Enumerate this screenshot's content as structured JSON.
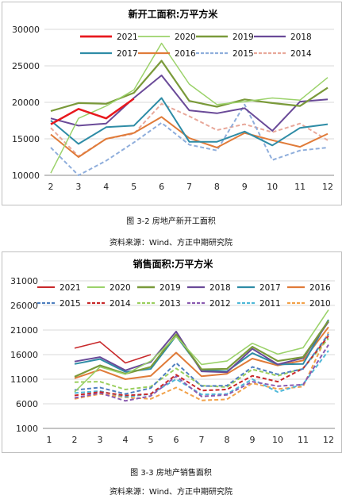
{
  "figures": [
    {
      "caption": "图 3-2 房地产新开工面积",
      "source": "资料来源：Wind、方正中期研究院"
    },
    {
      "caption": "图 3-3 房地产销售面积",
      "source": "资料来源：Wind、方正中期研究院"
    }
  ],
  "chart_data": [
    {
      "type": "line",
      "title": "新开工面积:万平方米",
      "x": [
        2,
        3,
        4,
        5,
        6,
        7,
        8,
        9,
        10,
        11,
        12
      ],
      "ylim": [
        10000,
        30000
      ],
      "yticks": [
        10000,
        15000,
        20000,
        25000,
        30000
      ],
      "grid": true,
      "legend": "top",
      "series": [
        {
          "name": "2021",
          "color": "#e8191e",
          "dash": "solid",
          "width": 2.5,
          "values": [
            17000,
            19100,
            17800,
            20500,
            null,
            null,
            null,
            null,
            null,
            null,
            null
          ]
        },
        {
          "name": "2020",
          "color": "#9bd26a",
          "dash": "solid",
          "width": 1.5,
          "values": [
            10300,
            17800,
            19500,
            21700,
            28100,
            22500,
            19700,
            20100,
            20600,
            20300,
            23400
          ]
        },
        {
          "name": "2019",
          "color": "#7a9a3a",
          "dash": "solid",
          "width": 2.2,
          "values": [
            18800,
            19900,
            19800,
            21300,
            25700,
            20200,
            19400,
            20400,
            19900,
            19500,
            22000
          ]
        },
        {
          "name": "2018",
          "color": "#6a4a98",
          "dash": "solid",
          "width": 2,
          "values": [
            17800,
            16800,
            17100,
            20600,
            23700,
            18900,
            18500,
            19200,
            16100,
            20100,
            20400
          ]
        },
        {
          "name": "2017",
          "color": "#2e8ca6",
          "dash": "solid",
          "width": 2,
          "values": [
            17500,
            14300,
            16600,
            16800,
            20600,
            14600,
            14600,
            16000,
            14100,
            16500,
            17000
          ]
        },
        {
          "name": "2016",
          "color": "#e07b39",
          "dash": "solid",
          "width": 2,
          "values": [
            15600,
            12500,
            15000,
            15800,
            18000,
            15100,
            13800,
            15800,
            14800,
            13900,
            15700
          ]
        },
        {
          "name": "2015",
          "color": "#8faedc",
          "dash": "dashed",
          "width": 2,
          "values": [
            13800,
            10000,
            12000,
            14500,
            17200,
            14200,
            13400,
            19700,
            12100,
            13400,
            13800
          ]
        },
        {
          "name": "2014",
          "color": "#e8a89a",
          "dash": "dashed",
          "width": 2,
          "values": [
            16500,
            12600,
            15000,
            15700,
            19800,
            18100,
            16200,
            17000,
            15900,
            17100,
            14800
          ]
        }
      ]
    },
    {
      "type": "line",
      "title": "销售面积:万平方米",
      "x": [
        1,
        2,
        3,
        4,
        5,
        6,
        7,
        8,
        9,
        10,
        11,
        12
      ],
      "ylim": [
        1000,
        31000
      ],
      "yticks": [
        1000,
        6000,
        11000,
        16000,
        21000,
        26000,
        31000
      ],
      "grid": true,
      "legend": "top",
      "series": [
        {
          "name": "2021",
          "color": "#c8282a",
          "dash": "solid",
          "width": 1.6,
          "values": [
            null,
            17300,
            18600,
            14300,
            16000,
            null,
            null,
            null,
            null,
            null,
            null,
            null
          ]
        },
        {
          "name": "2020",
          "color": "#9bd26a",
          "dash": "solid",
          "width": 1.6,
          "values": [
            null,
            8400,
            13500,
            12000,
            14700,
            19700,
            14000,
            14700,
            18300,
            16100,
            17400,
            25100
          ]
        },
        {
          "name": "2019",
          "color": "#7a9a3a",
          "dash": "solid",
          "width": 2.2,
          "values": [
            null,
            11500,
            13800,
            12100,
            13500,
            20100,
            13000,
            13100,
            17600,
            14700,
            15500,
            22900
          ]
        },
        {
          "name": "2018",
          "color": "#6a4a98",
          "dash": "solid",
          "width": 2,
          "values": [
            null,
            14600,
            15500,
            12800,
            14500,
            20700,
            12600,
            12400,
            17200,
            14000,
            15300,
            22700
          ]
        },
        {
          "name": "2017",
          "color": "#2e8ca6",
          "dash": "solid",
          "width": 2,
          "values": [
            null,
            14100,
            15100,
            12500,
            13100,
            19800,
            12900,
            12600,
            16300,
            14000,
            14100,
            23100
          ]
        },
        {
          "name": "2016",
          "color": "#e07b39",
          "dash": "solid",
          "width": 2,
          "values": [
            null,
            11200,
            12900,
            11000,
            11700,
            16400,
            11600,
            12100,
            15200,
            13800,
            14800,
            21600
          ]
        },
        {
          "name": "2015",
          "color": "#4f7fbf",
          "dash": "dashed",
          "width": 2,
          "values": [
            null,
            8800,
            9300,
            8000,
            9200,
            14300,
            9600,
            9700,
            13500,
            12000,
            13100,
            20200
          ]
        },
        {
          "name": "2014",
          "color": "#c8282a",
          "dash": "dashed",
          "width": 2,
          "values": [
            null,
            7700,
            8400,
            7700,
            8000,
            11900,
            8700,
            8900,
            11700,
            10500,
            13200,
            19800
          ]
        },
        {
          "name": "2013",
          "color": "#9bcf5e",
          "dash": "dashed",
          "width": 2,
          "values": [
            null,
            10400,
            10500,
            8900,
            9500,
            13200,
            9700,
            9400,
            13000,
            11700,
            13200,
            19300
          ]
        },
        {
          "name": "2012",
          "color": "#8a5ab0",
          "dash": "dashed",
          "width": 2,
          "values": [
            null,
            7200,
            8200,
            6600,
            7600,
            11600,
            7500,
            7800,
            10500,
            9600,
            9900,
            18000
          ]
        },
        {
          "name": "2011",
          "color": "#4fb8d8",
          "dash": "dashed",
          "width": 2,
          "values": [
            null,
            8200,
            8600,
            7400,
            8000,
            11000,
            7900,
            8000,
            11000,
            8400,
            10000,
            16800
          ]
        },
        {
          "name": "2010",
          "color": "#f2a24a",
          "dash": "dashed",
          "width": 2,
          "values": [
            null,
            7000,
            8000,
            7300,
            7000,
            9300,
            6700,
            6900,
            10200,
            9000,
            9500,
            20600
          ]
        }
      ]
    }
  ]
}
